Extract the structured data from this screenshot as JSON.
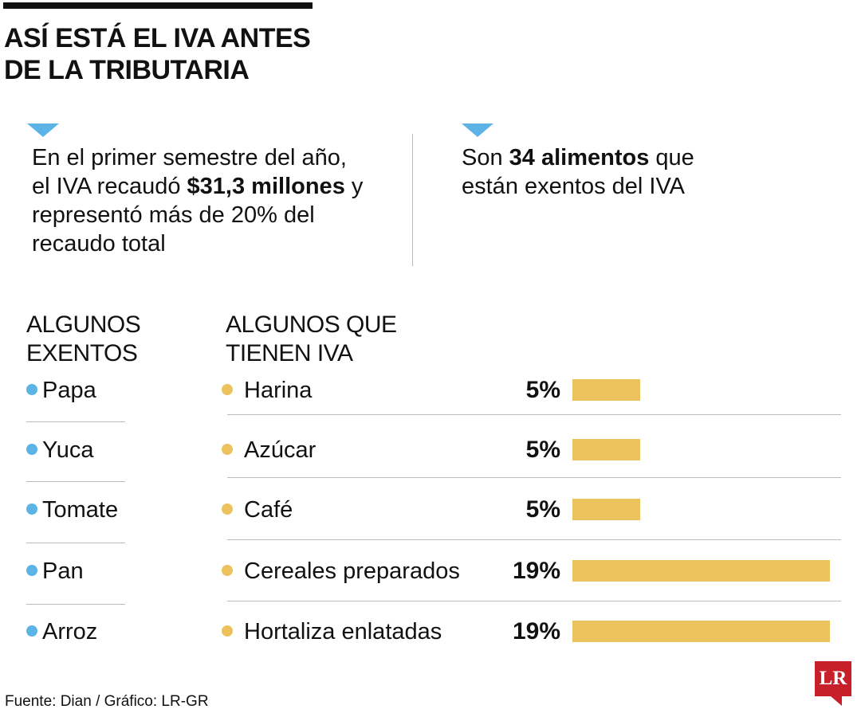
{
  "title_lines": [
    "ASÍ ESTÁ EL IVA ANTES",
    "DE LA TRIBUTARIA"
  ],
  "stat1": {
    "a": "En el primer semestre del año, el IVA recaudó ",
    "b": "$31,3 millones",
    "c": " y representó más de 20% del recaudo total"
  },
  "stat2": {
    "a": "Son ",
    "b": "34 alimentos",
    "c": " que están exentos del IVA"
  },
  "left_header": [
    "ALGUNOS",
    "EXENTOS"
  ],
  "right_header": [
    "ALGUNOS QUE",
    "TIENEN IVA"
  ],
  "exempt": [
    "Papa",
    "Yuca",
    "Tomate",
    "Pan",
    "Arroz"
  ],
  "colors": {
    "blue": "#5bb4e5",
    "gold": "#ebc25c",
    "logo": "#c8202a"
  },
  "chart_data": {
    "type": "bar",
    "orientation": "horizontal",
    "categories": [
      "Harina",
      "Azúcar",
      "Café",
      "Cereales preparados",
      "Hortaliza enlatadas"
    ],
    "values": [
      5,
      5,
      5,
      19,
      19
    ],
    "labels": [
      "5%",
      "5%",
      "5%",
      "19%",
      "19%"
    ]
  },
  "source": "Fuente: Dian / Gráfico: LR-GR",
  "logo": "LR"
}
